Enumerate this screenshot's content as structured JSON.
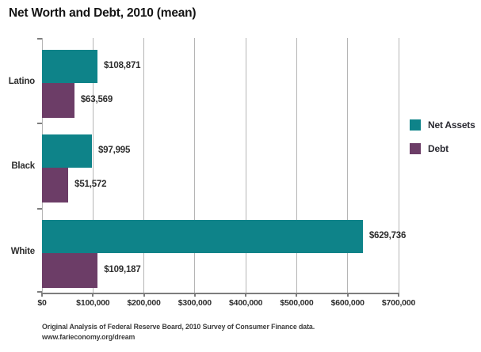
{
  "title": "Net Worth and Debt, 2010 (mean)",
  "chart_data": {
    "type": "bar",
    "orientation": "horizontal",
    "title": "Net Worth and Debt, 2010 (mean)",
    "categories": [
      "Latino",
      "Black",
      "White"
    ],
    "series": [
      {
        "name": "Net Assets",
        "color": "#0E8389",
        "values": [
          108871,
          97995,
          629736
        ],
        "labels": [
          "$108,871",
          "$97,995",
          "$629,736"
        ]
      },
      {
        "name": "Debt",
        "color": "#6C3D67",
        "values": [
          63569,
          51572,
          109187
        ],
        "labels": [
          "$63,569",
          "$51,572",
          "$109,187"
        ]
      }
    ],
    "xlabel": "",
    "ylabel": "",
    "xlim": [
      0,
      700000
    ],
    "x_tick_labels": [
      "$0",
      "$100,000",
      "$200,000",
      "$300,000",
      "$400,000",
      "$500,000",
      "$600,000",
      "$700,000"
    ],
    "grid": true,
    "legend_position": "right"
  },
  "colors": {
    "net_assets": "#0E8389",
    "debt": "#6C3D67",
    "gridline": "#b5b5b5",
    "axis": "#7d7d7d"
  },
  "footer": {
    "line1": "Original Analysis of Federal Reserve Board, 2010 Survey of Consumer Finance data.",
    "line2": "www.farieconomy.org/dream"
  }
}
